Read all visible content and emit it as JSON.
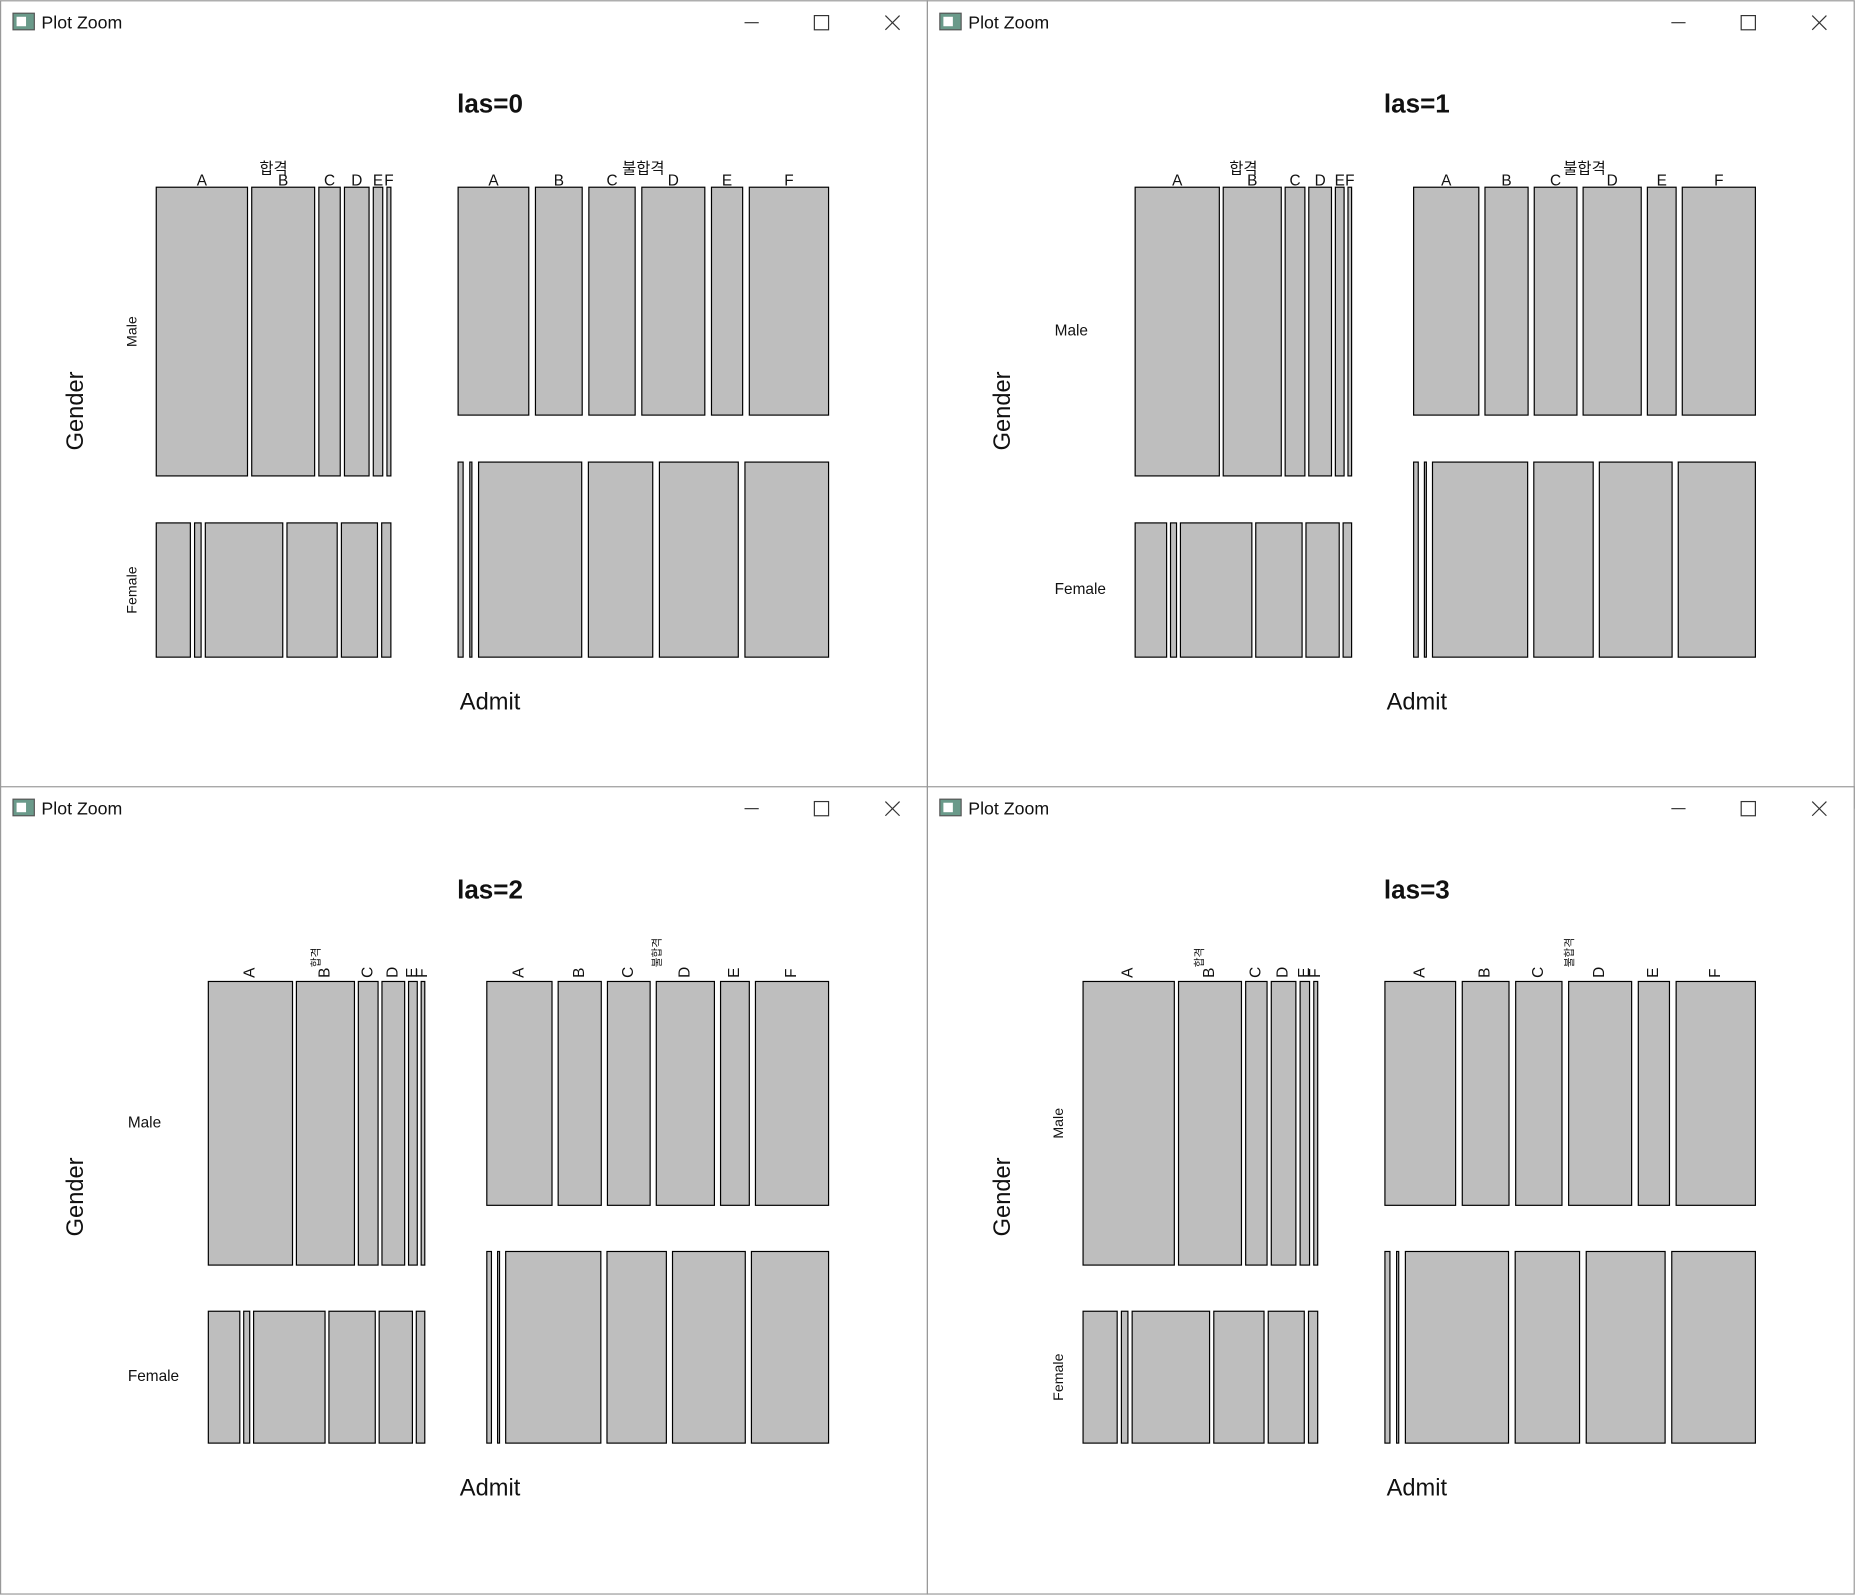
{
  "windows": [
    {
      "title": "Plot Zoom"
    },
    {
      "title": "Plot Zoom"
    },
    {
      "title": "Plot Zoom"
    },
    {
      "title": "Plot Zoom"
    }
  ],
  "chart_data": [
    {
      "type": "mosaic",
      "title": "las=0",
      "las": 0,
      "xlabel": "Admit",
      "ylabel": "Gender",
      "color": "#bebebe",
      "admit": [
        "합격",
        "불합격"
      ],
      "gender": [
        "Male",
        "Female"
      ],
      "dept": [
        "A",
        "B",
        "C",
        "D",
        "E",
        "F"
      ],
      "counts": [
        [
          [
            512,
            353,
            120,
            138,
            53,
            22
          ],
          [
            89,
            17,
            202,
            131,
            94,
            24
          ]
        ],
        [
          [
            313,
            207,
            205,
            279,
            138,
            351
          ],
          [
            19,
            8,
            391,
            244,
            299,
            317
          ]
        ]
      ]
    },
    {
      "type": "mosaic",
      "title": "las=1",
      "las": 1,
      "xlabel": "Admit",
      "ylabel": "Gender",
      "color": "#bebebe",
      "admit": [
        "합격",
        "불합격"
      ],
      "gender": [
        "Male",
        "Female"
      ],
      "dept": [
        "A",
        "B",
        "C",
        "D",
        "E",
        "F"
      ],
      "counts": [
        [
          [
            512,
            353,
            120,
            138,
            53,
            22
          ],
          [
            89,
            17,
            202,
            131,
            94,
            24
          ]
        ],
        [
          [
            313,
            207,
            205,
            279,
            138,
            351
          ],
          [
            19,
            8,
            391,
            244,
            299,
            317
          ]
        ]
      ]
    },
    {
      "type": "mosaic",
      "title": "las=2",
      "las": 2,
      "xlabel": "Admit",
      "ylabel": "Gender",
      "color": "#bebebe",
      "admit": [
        "합격",
        "불합격"
      ],
      "gender": [
        "Male",
        "Female"
      ],
      "dept": [
        "A",
        "B",
        "C",
        "D",
        "E",
        "F"
      ],
      "counts": [
        [
          [
            512,
            353,
            120,
            138,
            53,
            22
          ],
          [
            89,
            17,
            202,
            131,
            94,
            24
          ]
        ],
        [
          [
            313,
            207,
            205,
            279,
            138,
            351
          ],
          [
            19,
            8,
            391,
            244,
            299,
            317
          ]
        ]
      ]
    },
    {
      "type": "mosaic",
      "title": "las=3",
      "las": 3,
      "xlabel": "Admit",
      "ylabel": "Gender",
      "color": "#bebebe",
      "admit": [
        "합격",
        "불합격"
      ],
      "gender": [
        "Male",
        "Female"
      ],
      "dept": [
        "A",
        "B",
        "C",
        "D",
        "E",
        "F"
      ],
      "counts": [
        [
          [
            512,
            353,
            120,
            138,
            53,
            22
          ],
          [
            89,
            17,
            202,
            131,
            94,
            24
          ]
        ],
        [
          [
            313,
            207,
            205,
            279,
            138,
            351
          ],
          [
            19,
            8,
            391,
            244,
            299,
            317
          ]
        ]
      ]
    }
  ]
}
